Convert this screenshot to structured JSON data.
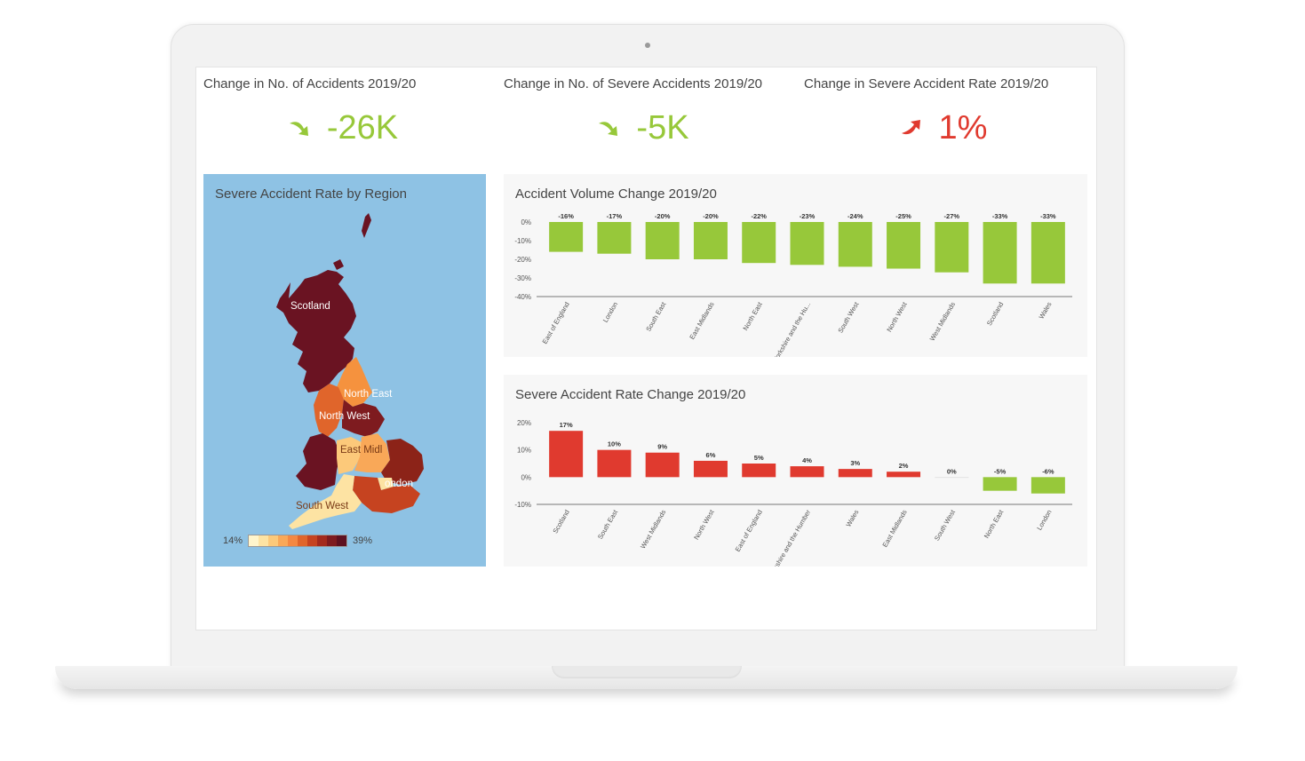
{
  "kpis": [
    {
      "title": "Change in No. of Accidents 2019/20",
      "value": "-26K",
      "direction": "down",
      "color": "#97c83a"
    },
    {
      "title": "Change in No. of Severe Accidents 2019/20",
      "value": "-5K",
      "direction": "down",
      "color": "#97c83a"
    },
    {
      "title": "Change in Severe Accident Rate 2019/20",
      "value": "1%",
      "direction": "up",
      "color": "#e03a2f"
    }
  ],
  "map": {
    "title": "Severe Accident Rate by Region",
    "labels": [
      "Scotland",
      "North East",
      "North West",
      "East Midl",
      "ondon",
      "South West"
    ],
    "legend_min": "14%",
    "legend_max": "39%",
    "legend_colors": [
      "#fff5cc",
      "#fde3a3",
      "#fcc97a",
      "#f9a858",
      "#f48842",
      "#e0652b",
      "#c64320",
      "#a32a1d",
      "#7e1b1f",
      "#5e1120"
    ],
    "background": "#8ec2e4"
  },
  "chart_data": [
    {
      "type": "bar",
      "title": "Accident Volume Change 2019/20",
      "categories": [
        "East of England",
        "London",
        "South East",
        "East Midlands",
        "North East",
        "Yorkshire and the Hu...",
        "South West",
        "North West",
        "West Midlands",
        "Scotland",
        "Wales"
      ],
      "values": [
        -16,
        -17,
        -20,
        -20,
        -22,
        -23,
        -24,
        -25,
        -27,
        -33,
        -33
      ],
      "data_labels": [
        "-16%",
        "-17%",
        "-20%",
        "-20%",
        "-22%",
        "-23%",
        "-24%",
        "-25%",
        "-27%",
        "-33%",
        "-33%"
      ],
      "yticks": [
        "0%",
        "-10%",
        "-20%",
        "-30%",
        "-40%"
      ],
      "ylim": [
        -40,
        0
      ],
      "positive_color": "#97c83a",
      "negative_color": "#97c83a"
    },
    {
      "type": "bar",
      "title": "Severe Accident Rate Change 2019/20",
      "categories": [
        "Scotland",
        "South East",
        "West Midlands",
        "North West",
        "East of England",
        "Yorkshire and the Humber",
        "Wales",
        "East Midlands",
        "South West",
        "North East",
        "London"
      ],
      "values": [
        17,
        10,
        9,
        6,
        5,
        4,
        3,
        2,
        0,
        -5,
        -6
      ],
      "data_labels": [
        "17%",
        "10%",
        "9%",
        "6%",
        "5%",
        "4%",
        "3%",
        "2%",
        "0%",
        "-5%",
        "-6%"
      ],
      "yticks": [
        "20%",
        "10%",
        "0%",
        "-10%"
      ],
      "ylim": [
        -10,
        20
      ],
      "positive_color": "#e03a2f",
      "negative_color": "#97c83a"
    }
  ]
}
